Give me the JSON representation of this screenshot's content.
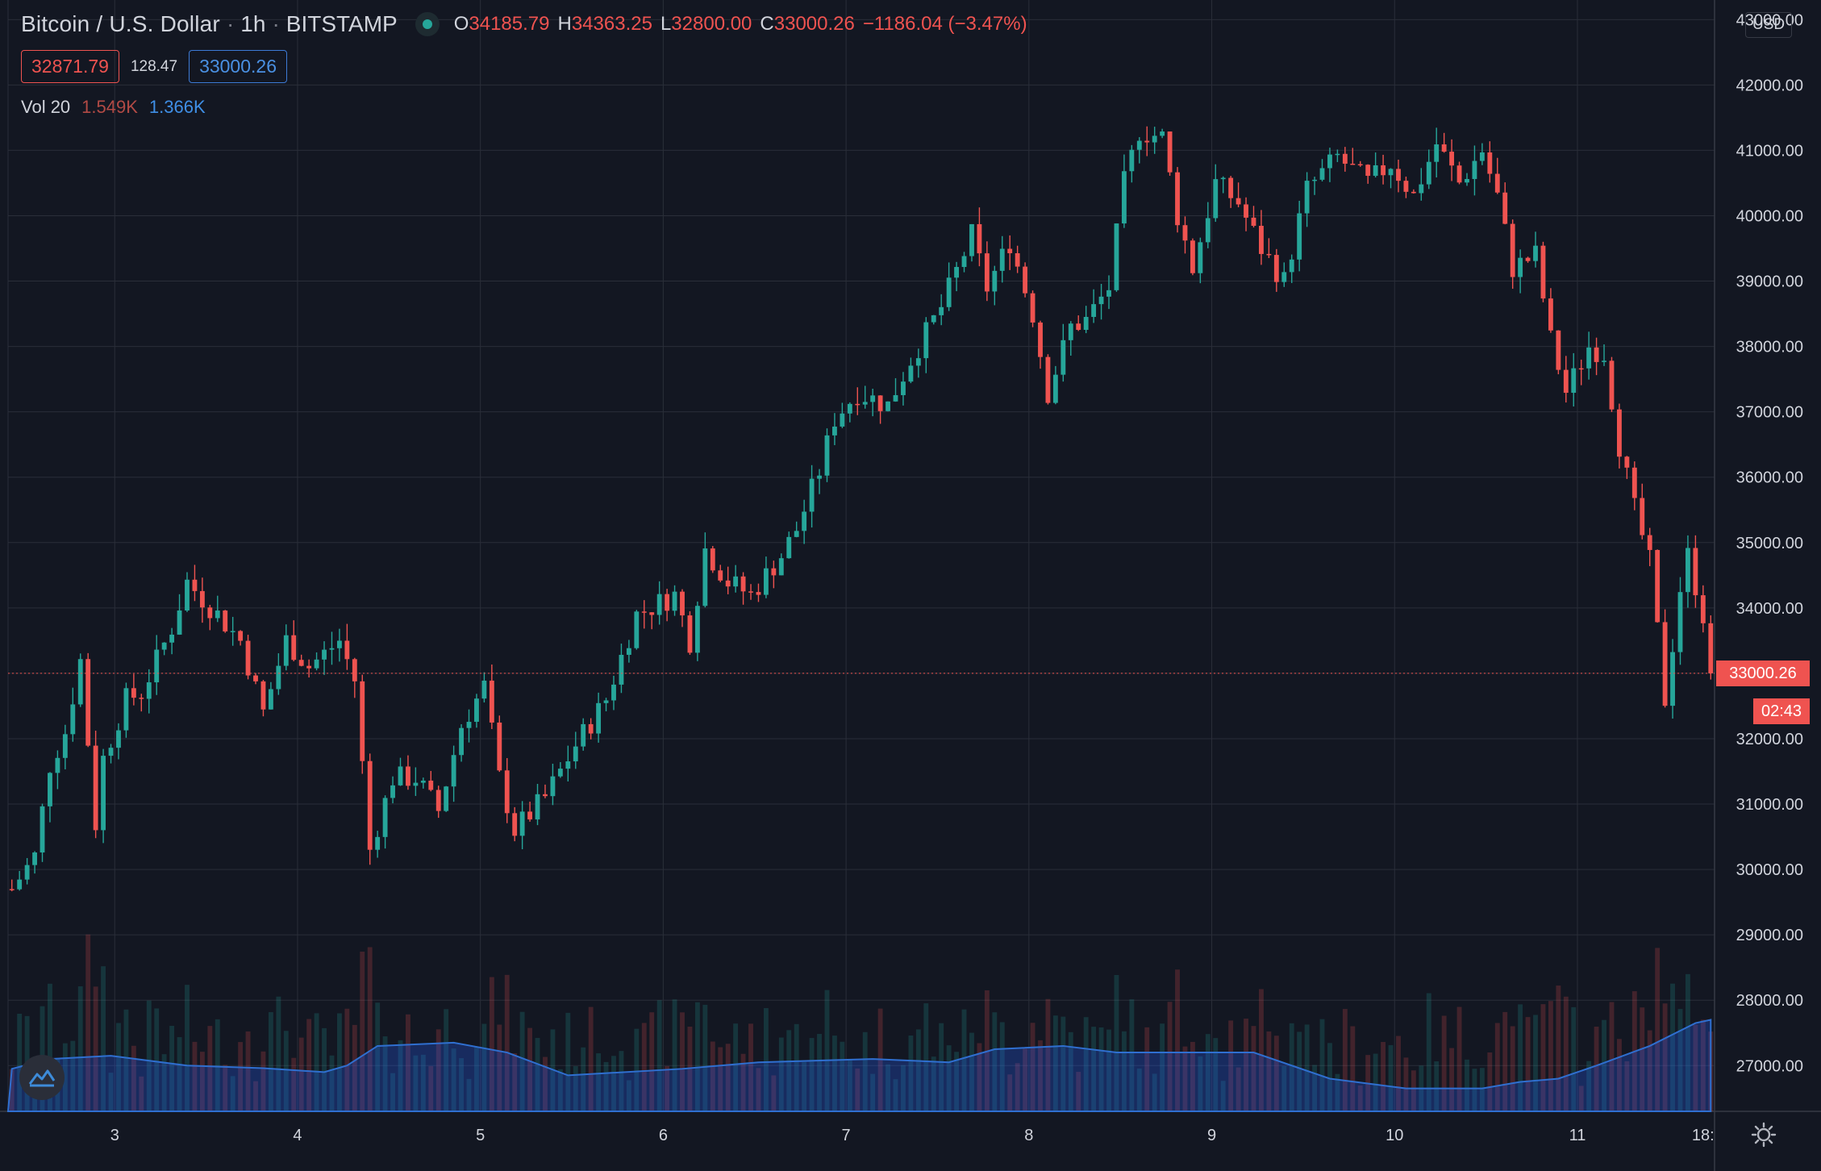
{
  "header": {
    "symbol": "Bitcoin / U.S. Dollar",
    "interval": "1h",
    "exchange": "BITSTAMP",
    "sep": "·",
    "o_label": "O",
    "o_value": "34185.79",
    "h_label": "H",
    "h_value": "34363.25",
    "l_label": "L",
    "l_value": "32800.00",
    "c_label": "C",
    "c_value": "33000.26",
    "change": "−1186.04 (−3.47%)"
  },
  "bid": "32871.79",
  "spread": "128.47",
  "ask": "33000.26",
  "volume": {
    "label": "Vol 20",
    "value": "1.549K",
    "ma": "1.366K"
  },
  "currency": "USD",
  "last_price_label": "33000.26",
  "countdown": "02:43",
  "colors": {
    "bg": "#131722",
    "up": "#26a69a",
    "down": "#ef5350",
    "grid": "#2a2e39",
    "vol_ma": "#2962ff"
  },
  "chart_data": {
    "type": "candlestick",
    "ylim": [
      26300,
      43300
    ],
    "y_ticks": [
      "43000.00",
      "42000.00",
      "41000.00",
      "40000.00",
      "39000.00",
      "38000.00",
      "37000.00",
      "36000.00",
      "35000.00",
      "34000.00",
      "33000.00",
      "32000.00",
      "31000.00",
      "30000.00",
      "29000.00",
      "28000.00",
      "27000.00"
    ],
    "x_ticks": [
      "3",
      "4",
      "5",
      "6",
      "7",
      "8",
      "9",
      "10",
      "11",
      "18:"
    ],
    "x_tick_hours": [
      10.5,
      34.5,
      58.5,
      82.5,
      106.5,
      130.5,
      154.5,
      178.5,
      202.5,
      219
    ],
    "hours_per_day_start": 10.5,
    "close_anchors": [
      [
        -3,
        29700
      ],
      [
        0,
        30200
      ],
      [
        2,
        31600
      ],
      [
        4,
        32100
      ],
      [
        6,
        33200
      ],
      [
        8,
        30700
      ],
      [
        9,
        31700
      ],
      [
        12,
        32600
      ],
      [
        14,
        32700
      ],
      [
        18,
        33700
      ],
      [
        20,
        34400
      ],
      [
        24,
        33900
      ],
      [
        27,
        33500
      ],
      [
        30,
        32400
      ],
      [
        33,
        33500
      ],
      [
        36,
        33100
      ],
      [
        40,
        33500
      ],
      [
        42,
        32900
      ],
      [
        44,
        30300
      ],
      [
        47,
        31400
      ],
      [
        50,
        31400
      ],
      [
        53,
        30900
      ],
      [
        56,
        32200
      ],
      [
        59,
        32800
      ],
      [
        61,
        31400
      ],
      [
        63,
        30600
      ],
      [
        67,
        31100
      ],
      [
        71,
        31900
      ],
      [
        75,
        32600
      ],
      [
        79,
        33900
      ],
      [
        84,
        34200
      ],
      [
        86,
        33500
      ],
      [
        88,
        34900
      ],
      [
        91,
        34400
      ],
      [
        94,
        34200
      ],
      [
        98,
        34800
      ],
      [
        100,
        35200
      ],
      [
        103,
        36100
      ],
      [
        105,
        36900
      ],
      [
        108,
        37300
      ],
      [
        112,
        37100
      ],
      [
        115,
        37800
      ],
      [
        119,
        38600
      ],
      [
        123,
        39700
      ],
      [
        125,
        38900
      ],
      [
        128,
        39600
      ],
      [
        131,
        38500
      ],
      [
        133,
        37300
      ],
      [
        136,
        38300
      ],
      [
        138,
        38400
      ],
      [
        141,
        38900
      ],
      [
        143,
        40500
      ],
      [
        145,
        41300
      ],
      [
        148,
        41200
      ],
      [
        150,
        40000
      ],
      [
        152,
        39200
      ],
      [
        155,
        40500
      ],
      [
        158,
        40200
      ],
      [
        161,
        39500
      ],
      [
        164,
        39000
      ],
      [
        167,
        40400
      ],
      [
        171,
        40900
      ],
      [
        175,
        40500
      ],
      [
        178,
        40800
      ],
      [
        181,
        40300
      ],
      [
        184,
        41100
      ],
      [
        187,
        40500
      ],
      [
        190,
        41000
      ],
      [
        192,
        40300
      ],
      [
        194,
        39200
      ],
      [
        197,
        39400
      ],
      [
        199,
        38100
      ],
      [
        201,
        37300
      ],
      [
        204,
        38000
      ],
      [
        206,
        37900
      ],
      [
        208,
        36500
      ],
      [
        210,
        35500
      ],
      [
        212,
        34700
      ],
      [
        214,
        32600
      ],
      [
        216,
        34300
      ],
      [
        217,
        34800
      ],
      [
        219,
        33900
      ],
      [
        220,
        33000
      ]
    ],
    "candles_count": 218,
    "volume_ma": [
      [
        -3,
        26950
      ],
      [
        2,
        27100
      ],
      [
        10,
        27150
      ],
      [
        20,
        27000
      ],
      [
        30,
        26960
      ],
      [
        38,
        26900
      ],
      [
        41,
        27000
      ],
      [
        45,
        27300
      ],
      [
        55,
        27350
      ],
      [
        62,
        27200
      ],
      [
        70,
        26850
      ],
      [
        85,
        26950
      ],
      [
        95,
        27050
      ],
      [
        110,
        27100
      ],
      [
        120,
        27050
      ],
      [
        126,
        27250
      ],
      [
        135,
        27300
      ],
      [
        142,
        27200
      ],
      [
        150,
        27200
      ],
      [
        160,
        27200
      ],
      [
        170,
        26800
      ],
      [
        180,
        26650
      ],
      [
        190,
        26650
      ],
      [
        195,
        26750
      ],
      [
        200,
        26800
      ],
      [
        205,
        27000
      ],
      [
        212,
        27300
      ],
      [
        218,
        27650
      ],
      [
        220,
        27700
      ]
    ]
  }
}
